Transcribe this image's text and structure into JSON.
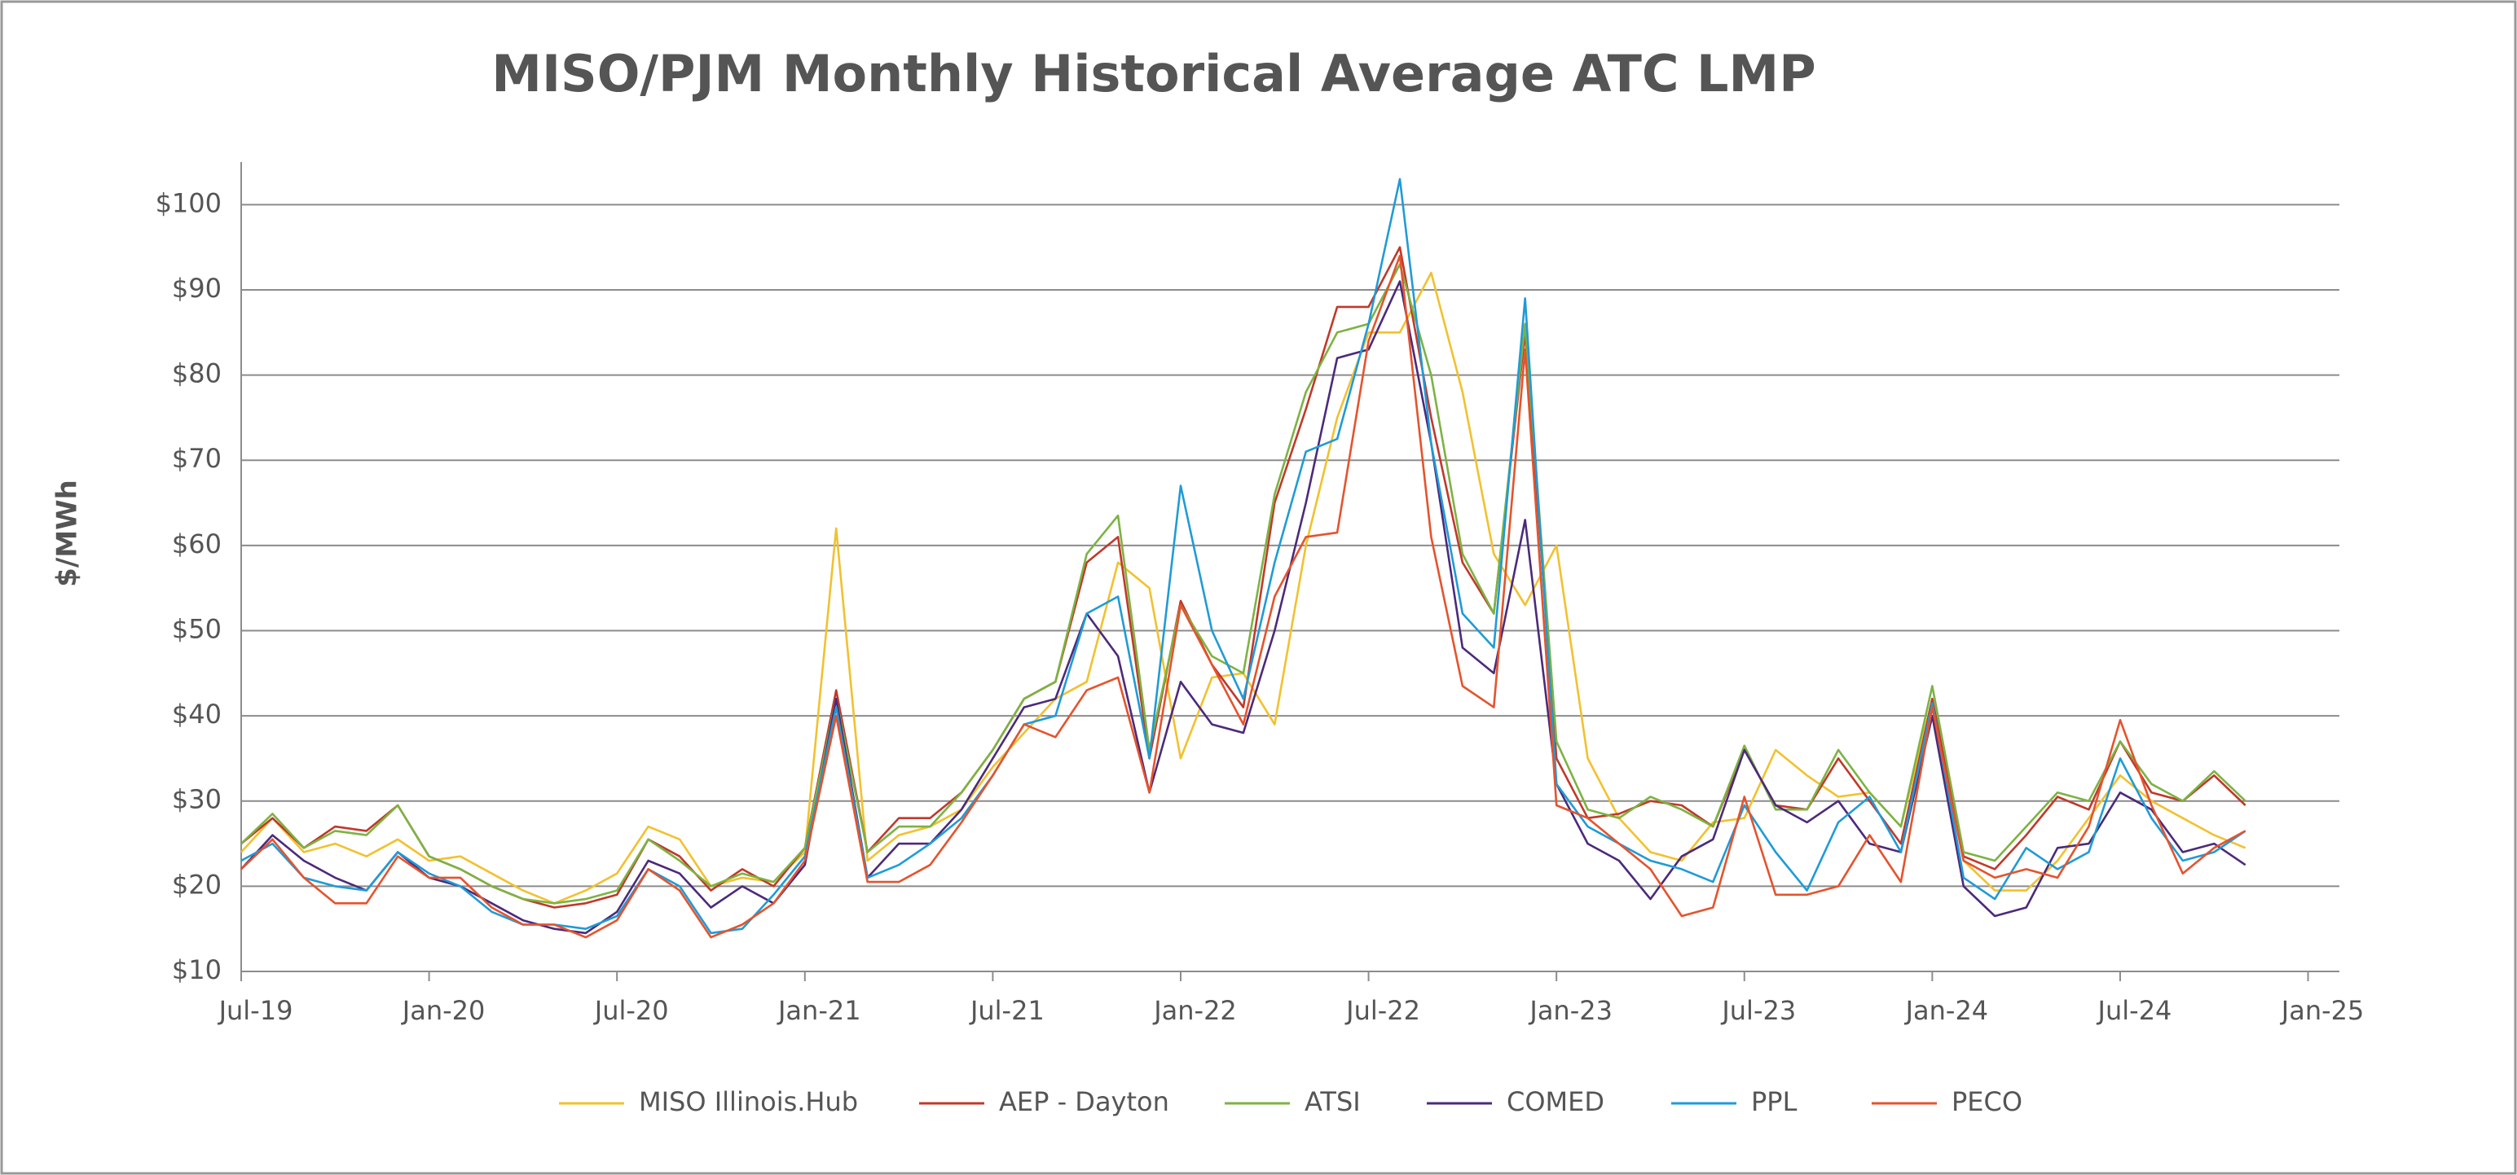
{
  "chart_data": {
    "type": "line",
    "title": "MISO/PJM Monthly Historical Average ATC LMP",
    "y_label": "$/MWh",
    "x": [
      "2019-07",
      "2019-08",
      "2019-09",
      "2019-10",
      "2019-11",
      "2019-12",
      "2020-01",
      "2020-02",
      "2020-03",
      "2020-04",
      "2020-05",
      "2020-06",
      "2020-07",
      "2020-08",
      "2020-09",
      "2020-10",
      "2020-11",
      "2020-12",
      "2021-01",
      "2021-02",
      "2021-03",
      "2021-04",
      "2021-05",
      "2021-06",
      "2021-07",
      "2021-08",
      "2021-09",
      "2021-10",
      "2021-11",
      "2021-12",
      "2022-01",
      "2022-02",
      "2022-03",
      "2022-04",
      "2022-05",
      "2022-06",
      "2022-07",
      "2022-08",
      "2022-09",
      "2022-10",
      "2022-11",
      "2022-12",
      "2023-01",
      "2023-02",
      "2023-03",
      "2023-04",
      "2023-05",
      "2023-06",
      "2023-07",
      "2023-08",
      "2023-09",
      "2023-10",
      "2023-11",
      "2023-12",
      "2024-01",
      "2024-02",
      "2024-03",
      "2024-04",
      "2024-05",
      "2024-06",
      "2024-07",
      "2024-08",
      "2024-09",
      "2024-10",
      "2024-11"
    ],
    "xlim": [
      "2019-07",
      "2025-02"
    ],
    "xticks": [
      {
        "value": "2019-07",
        "label": "Jul-19"
      },
      {
        "value": "2020-01",
        "label": "Jan-20"
      },
      {
        "value": "2020-07",
        "label": "Jul-20"
      },
      {
        "value": "2021-01",
        "label": "Jan-21"
      },
      {
        "value": "2021-07",
        "label": "Jul-21"
      },
      {
        "value": "2022-01",
        "label": "Jan-22"
      },
      {
        "value": "2022-07",
        "label": "Jul-22"
      },
      {
        "value": "2023-01",
        "label": "Jan-23"
      },
      {
        "value": "2023-07",
        "label": "Jul-23"
      },
      {
        "value": "2024-01",
        "label": "Jan-24"
      },
      {
        "value": "2024-07",
        "label": "Jul-24"
      },
      {
        "value": "2025-01",
        "label": "Jan-25"
      }
    ],
    "ylim": [
      10,
      105
    ],
    "yticks": [
      {
        "value": 10,
        "label": "$10"
      },
      {
        "value": 20,
        "label": "$20"
      },
      {
        "value": 30,
        "label": "$30"
      },
      {
        "value": 40,
        "label": "$40"
      },
      {
        "value": 50,
        "label": "$50"
      },
      {
        "value": 60,
        "label": "$60"
      },
      {
        "value": 70,
        "label": "$70"
      },
      {
        "value": 80,
        "label": "$80"
      },
      {
        "value": 90,
        "label": "$90"
      },
      {
        "value": 100,
        "label": "$100"
      }
    ],
    "grid": true,
    "legend": "bottom",
    "series": [
      {
        "name": "MISO Illinois.Hub",
        "color": "#f2c12e",
        "values": [
          24,
          28,
          24,
          25,
          23.5,
          25.5,
          23,
          23.5,
          21.5,
          19.5,
          18,
          19.5,
          21.5,
          27,
          25.5,
          20,
          21,
          20.5,
          24,
          62,
          23,
          26,
          27,
          29,
          34,
          38,
          42,
          44,
          58,
          55,
          35,
          44.5,
          45,
          39,
          60,
          75,
          85,
          85,
          92,
          78,
          59,
          53,
          60,
          35,
          28,
          24,
          23,
          27.5,
          28,
          36,
          33,
          30.5,
          31,
          27,
          42,
          23,
          19.5,
          19.5,
          23,
          28,
          33,
          30,
          28,
          26,
          24.5
        ]
      },
      {
        "name": "AEP - Dayton",
        "color": "#c0392b",
        "values": [
          25,
          28,
          24.5,
          27,
          26.5,
          29.5,
          23.5,
          22,
          20,
          18.5,
          17.5,
          18,
          19,
          25.5,
          23.5,
          19.5,
          22,
          20,
          24.5,
          43,
          24,
          28,
          28,
          31,
          36,
          42,
          44,
          58,
          61,
          35,
          53.5,
          46,
          41,
          65,
          76,
          88,
          88,
          95,
          75,
          58,
          52,
          85,
          35,
          28,
          28.5,
          30,
          29.5,
          27,
          36,
          29.5,
          29,
          35,
          30,
          25,
          42,
          23.5,
          22,
          26,
          30.5,
          29,
          37,
          31,
          30,
          33,
          29.5
        ]
      },
      {
        "name": "ATSI",
        "color": "#7cb342",
        "values": [
          25,
          28.5,
          24.5,
          26.5,
          26,
          29.5,
          23.5,
          22,
          20,
          18.5,
          18,
          18.5,
          19.5,
          25.5,
          23,
          20,
          21.5,
          20.5,
          24.5,
          42,
          24,
          27,
          27,
          31,
          36,
          42,
          44,
          59,
          63.5,
          36,
          53,
          47,
          45,
          66,
          78,
          85,
          86,
          93,
          80,
          59,
          52,
          86,
          37,
          29,
          28,
          30.5,
          29,
          27,
          36.5,
          29,
          29,
          36,
          31,
          27,
          43.5,
          24,
          23,
          27,
          31,
          30,
          37,
          32,
          30,
          33.5,
          30
        ]
      },
      {
        "name": "COMED",
        "color": "#4b2a7b",
        "values": [
          22,
          26,
          23,
          21,
          19.5,
          24,
          21,
          20,
          18,
          16,
          15,
          14.5,
          17,
          23,
          21.5,
          17.5,
          20,
          18,
          22.5,
          42,
          21,
          25,
          25,
          29,
          35,
          41,
          42,
          52,
          47,
          31,
          44,
          39,
          38,
          50,
          65,
          82,
          83,
          91,
          72,
          48,
          45,
          63,
          32,
          25,
          23,
          18.5,
          23.5,
          25.5,
          36,
          29.5,
          27.5,
          30,
          25,
          24,
          40,
          20,
          16.5,
          17.5,
          24.5,
          25,
          31,
          29,
          24,
          25,
          22.5
        ]
      },
      {
        "name": "PPL",
        "color": "#1f9bd7",
        "values": [
          23,
          25,
          21,
          20,
          19.5,
          24,
          21.5,
          20,
          17,
          15.5,
          15.5,
          15,
          16.5,
          22,
          20,
          14.5,
          15,
          19,
          23.5,
          41,
          21,
          22.5,
          25,
          28,
          33,
          39,
          40,
          52,
          54,
          35,
          67,
          50,
          42,
          58,
          71,
          72.5,
          86,
          103,
          72,
          52,
          48,
          89,
          32,
          27,
          25,
          23,
          22,
          20.5,
          29.5,
          24,
          19.5,
          27.5,
          30.5,
          24,
          41.5,
          21,
          18.5,
          24.5,
          22,
          24,
          35,
          28,
          23,
          24,
          26.5
        ]
      },
      {
        "name": "PECO",
        "color": "#e5532d",
        "values": [
          22,
          25.5,
          21,
          18,
          18,
          23.5,
          21,
          21,
          17.5,
          15.5,
          15.5,
          14,
          16,
          22,
          19.5,
          14,
          15.5,
          18,
          23,
          40,
          20.5,
          20.5,
          22.5,
          27.5,
          33,
          39,
          37.5,
          43,
          44.5,
          31,
          53,
          46,
          39,
          54,
          61,
          61.5,
          84,
          94,
          61,
          43.5,
          41,
          83,
          29.5,
          28,
          25,
          22,
          16.5,
          17.5,
          30.5,
          19,
          19,
          20,
          26,
          20.5,
          41,
          23,
          21,
          22,
          21,
          27,
          39.5,
          29.5,
          21.5,
          24.5,
          26.5
        ]
      }
    ]
  }
}
